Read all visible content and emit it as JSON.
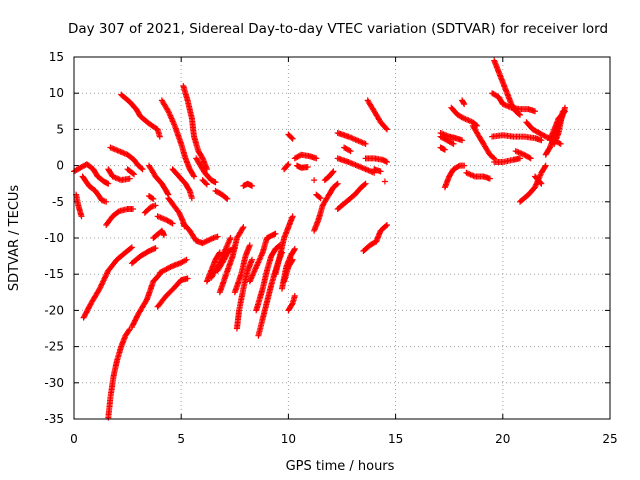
{
  "chart_data": {
    "type": "scatter",
    "title": "Day 307 of 2021, Sidereal Day-to-day VTEC variation (SDTVAR) for receiver lord",
    "xlabel": "GPS time / hours",
    "ylabel": "SDTVAR / TECUs",
    "xlim": [
      0,
      25
    ],
    "ylim": [
      -35,
      15
    ],
    "xticks": [
      "0",
      "5",
      "10",
      "15",
      "20",
      "25"
    ],
    "yticks": [
      "15",
      "10",
      "5",
      "0",
      "-5",
      "-10",
      "-15",
      "-20",
      "-25",
      "-30",
      "-35"
    ],
    "grid": true,
    "marker": "+",
    "color": "#ff0000",
    "arcs": [
      [
        [
          0.0,
          -0.8
        ],
        [
          0.3,
          -0.3
        ],
        [
          0.6,
          0.2
        ],
        [
          0.9,
          -0.5
        ],
        [
          1.1,
          -1.5
        ],
        [
          1.4,
          -2.2
        ],
        [
          1.6,
          -2.5
        ]
      ],
      [
        [
          0.1,
          -4.0
        ],
        [
          0.2,
          -5.5
        ],
        [
          0.35,
          -7.0
        ]
      ],
      [
        [
          0.4,
          -1.5
        ],
        [
          0.7,
          -2.8
        ],
        [
          1.0,
          -3.5
        ],
        [
          1.3,
          -4.8
        ],
        [
          1.5,
          -5.0
        ]
      ],
      [
        [
          0.45,
          -21.0
        ],
        [
          0.8,
          -19.0
        ],
        [
          1.2,
          -17.0
        ],
        [
          1.6,
          -14.5
        ],
        [
          2.0,
          -13.0
        ],
        [
          2.4,
          -12.0
        ],
        [
          2.7,
          -11.3
        ]
      ],
      [
        [
          1.6,
          -34.8
        ],
        [
          1.7,
          -32.0
        ],
        [
          1.85,
          -29.0
        ],
        [
          2.0,
          -27.0
        ],
        [
          2.2,
          -25.0
        ],
        [
          2.4,
          -23.5
        ],
        [
          2.6,
          -22.6
        ]
      ],
      [
        [
          1.5,
          -8.2
        ],
        [
          1.8,
          -7.0
        ],
        [
          2.1,
          -6.3
        ],
        [
          2.5,
          -6.0
        ],
        [
          2.75,
          -6.0
        ]
      ],
      [
        [
          1.6,
          -0.5
        ],
        [
          1.8,
          -1.5
        ],
        [
          2.2,
          -2.0
        ],
        [
          2.6,
          -1.8
        ]
      ],
      [
        [
          1.7,
          2.5
        ],
        [
          2.1,
          2.0
        ],
        [
          2.5,
          1.5
        ],
        [
          2.8,
          0.8
        ],
        [
          3.0,
          0.0
        ],
        [
          3.2,
          -0.5
        ]
      ],
      [
        [
          2.2,
          9.8
        ],
        [
          2.6,
          8.8
        ],
        [
          2.9,
          7.8
        ],
        [
          3.1,
          6.8
        ],
        [
          3.5,
          5.8
        ],
        [
          3.9,
          5.0
        ],
        [
          4.0,
          4.0
        ]
      ],
      [
        [
          2.5,
          -0.5
        ],
        [
          2.8,
          -1.2
        ]
      ],
      [
        [
          2.7,
          -13.5
        ],
        [
          3.1,
          -12.5
        ],
        [
          3.5,
          -11.8
        ],
        [
          3.8,
          -11.4
        ]
      ],
      [
        [
          2.7,
          -22.3
        ],
        [
          3.0,
          -20.5
        ],
        [
          3.4,
          -18.5
        ],
        [
          3.7,
          -16.0
        ],
        [
          4.0,
          -15.0
        ]
      ],
      [
        [
          3.3,
          -6.5
        ],
        [
          3.6,
          -5.7
        ],
        [
          3.8,
          -5.5
        ]
      ],
      [
        [
          3.5,
          0.0
        ],
        [
          3.8,
          -1.5
        ],
        [
          4.1,
          -2.5
        ],
        [
          4.3,
          -3.5
        ],
        [
          4.4,
          -4.0
        ]
      ],
      [
        [
          3.5,
          -4.2
        ],
        [
          3.7,
          -4.6
        ]
      ],
      [
        [
          3.7,
          -10.0
        ],
        [
          3.9,
          -9.5
        ],
        [
          4.1,
          -9.0
        ],
        [
          4.2,
          -9.6
        ]
      ],
      [
        [
          3.9,
          -7.0
        ],
        [
          4.3,
          -7.5
        ],
        [
          4.6,
          -8.0
        ]
      ],
      [
        [
          3.9,
          -19.5
        ],
        [
          4.3,
          -18.0
        ],
        [
          4.7,
          -16.8
        ],
        [
          5.0,
          -15.8
        ],
        [
          5.3,
          -15.6
        ]
      ],
      [
        [
          4.0,
          -14.8
        ],
        [
          4.5,
          -14.0
        ],
        [
          5.0,
          -13.4
        ],
        [
          5.25,
          -13.0
        ]
      ],
      [
        [
          4.1,
          9.0
        ],
        [
          4.4,
          7.5
        ],
        [
          4.7,
          5.5
        ],
        [
          5.0,
          3.0
        ],
        [
          5.2,
          1.0
        ],
        [
          5.4,
          -0.5
        ],
        [
          5.6,
          -1.5
        ]
      ],
      [
        [
          4.6,
          -0.5
        ],
        [
          4.9,
          -1.5
        ],
        [
          5.2,
          -2.5
        ],
        [
          5.4,
          -3.5
        ],
        [
          5.5,
          -4.5
        ]
      ],
      [
        [
          4.4,
          -4.5
        ],
        [
          4.6,
          -5.3
        ],
        [
          4.9,
          -6.5
        ],
        [
          5.1,
          -7.8
        ],
        [
          5.15,
          -8.4
        ]
      ],
      [
        [
          5.1,
          -8.0
        ],
        [
          5.4,
          -9.0
        ],
        [
          5.7,
          -10.4
        ],
        [
          6.0,
          -10.7
        ],
        [
          6.5,
          -10.0
        ],
        [
          6.7,
          -9.8
        ]
      ],
      [
        [
          5.1,
          11.0
        ],
        [
          5.3,
          9.0
        ],
        [
          5.5,
          6.5
        ],
        [
          5.6,
          4.0
        ],
        [
          5.8,
          2.0
        ],
        [
          6.0,
          1.0
        ],
        [
          6.2,
          -0.5
        ]
      ],
      [
        [
          5.7,
          1.0
        ],
        [
          6.1,
          -1.0
        ],
        [
          6.4,
          -2.0
        ],
        [
          6.6,
          -2.3
        ]
      ],
      [
        [
          6.0,
          -2.0
        ],
        [
          6.2,
          -2.6
        ]
      ],
      [
        [
          6.6,
          -3.5
        ],
        [
          6.9,
          -4.0
        ],
        [
          7.15,
          -4.6
        ]
      ],
      [
        [
          6.7,
          -14.5
        ],
        [
          7.0,
          -13.0
        ],
        [
          7.2,
          -11.8
        ],
        [
          7.5,
          -11.4
        ]
      ],
      [
        [
          6.2,
          -16.0
        ],
        [
          6.4,
          -14.5
        ],
        [
          6.6,
          -13.0
        ],
        [
          6.8,
          -12.0
        ]
      ],
      [
        [
          6.4,
          -15.5
        ],
        [
          6.7,
          -14.0
        ],
        [
          7.0,
          -12.0
        ],
        [
          7.3,
          -10.0
        ]
      ],
      [
        [
          6.8,
          -17.5
        ],
        [
          7.1,
          -15.0
        ],
        [
          7.4,
          -12.5
        ],
        [
          7.6,
          -10.0
        ],
        [
          7.9,
          -8.5
        ]
      ],
      [
        [
          7.9,
          -2.8
        ],
        [
          8.1,
          -2.5
        ],
        [
          8.3,
          -2.8
        ]
      ],
      [
        [
          7.6,
          -22.5
        ],
        [
          7.7,
          -20.0
        ],
        [
          7.9,
          -17.0
        ],
        [
          8.1,
          -14.5
        ],
        [
          8.3,
          -13.0
        ]
      ],
      [
        [
          7.5,
          -17.5
        ],
        [
          7.8,
          -15.0
        ],
        [
          8.0,
          -12.5
        ],
        [
          8.2,
          -11.0
        ]
      ],
      [
        [
          8.2,
          -16.0
        ],
        [
          8.5,
          -14.0
        ],
        [
          8.8,
          -12.0
        ],
        [
          9.0,
          -10.0
        ],
        [
          9.4,
          -9.4
        ]
      ],
      [
        [
          8.5,
          -20.0
        ],
        [
          8.8,
          -17.0
        ],
        [
          9.0,
          -14.5
        ],
        [
          9.2,
          -12.5
        ],
        [
          9.4,
          -11.5
        ],
        [
          9.6,
          -11.0
        ]
      ],
      [
        [
          8.6,
          -23.5
        ],
        [
          8.9,
          -20.0
        ],
        [
          9.2,
          -16.5
        ],
        [
          9.5,
          -13.5
        ],
        [
          9.7,
          -12.0
        ]
      ],
      [
        [
          9.4,
          -15.0
        ],
        [
          9.6,
          -12.5
        ],
        [
          9.8,
          -10.0
        ],
        [
          10.0,
          -8.5
        ],
        [
          10.2,
          -7.0
        ]
      ],
      [
        [
          9.7,
          -17.0
        ],
        [
          9.9,
          -14.0
        ],
        [
          10.1,
          -12.5
        ],
        [
          10.3,
          -11.5
        ]
      ],
      [
        [
          9.8,
          -16.0
        ],
        [
          10.0,
          -14.0
        ],
        [
          10.2,
          -13.0
        ]
      ],
      [
        [
          10.0,
          -20.0
        ],
        [
          10.2,
          -19.0
        ],
        [
          10.3,
          -18.0
        ]
      ],
      [
        [
          10.0,
          4.3
        ],
        [
          10.2,
          3.7
        ]
      ],
      [
        [
          9.8,
          -0.5
        ],
        [
          10.0,
          0.2
        ]
      ],
      [
        [
          10.3,
          1.0
        ],
        [
          10.6,
          1.5
        ],
        [
          11.0,
          1.3
        ],
        [
          11.3,
          1.0
        ]
      ],
      [
        [
          10.4,
          0.0
        ],
        [
          10.6,
          -0.3
        ],
        [
          10.9,
          -0.2
        ]
      ],
      [
        [
          11.2,
          -2.0
        ]
      ],
      [
        [
          11.2,
          -9.0
        ],
        [
          11.4,
          -7.5
        ],
        [
          11.6,
          -5.5
        ],
        [
          11.9,
          -4.0
        ],
        [
          12.1,
          -3.0
        ],
        [
          12.3,
          -2.5
        ]
      ],
      [
        [
          11.7,
          -2.0
        ],
        [
          11.9,
          -1.5
        ],
        [
          12.1,
          -0.8
        ]
      ],
      [
        [
          11.3,
          -4.0
        ],
        [
          11.5,
          -4.5
        ]
      ],
      [
        [
          12.3,
          -6.0
        ],
        [
          12.7,
          -5.0
        ],
        [
          13.1,
          -4.0
        ],
        [
          13.4,
          -3.0
        ],
        [
          13.6,
          -2.5
        ]
      ],
      [
        [
          12.3,
          4.5
        ],
        [
          12.8,
          4.0
        ],
        [
          13.2,
          3.5
        ],
        [
          13.6,
          3.0
        ]
      ],
      [
        [
          12.3,
          1.0
        ],
        [
          12.8,
          0.5
        ],
        [
          13.2,
          0.0
        ],
        [
          13.6,
          -0.5
        ],
        [
          14.0,
          -1.0
        ]
      ],
      [
        [
          12.6,
          2.5
        ],
        [
          12.9,
          2.0
        ]
      ],
      [
        [
          13.7,
          9.0
        ],
        [
          14.0,
          7.5
        ],
        [
          14.3,
          6.0
        ],
        [
          14.6,
          5.0
        ]
      ],
      [
        [
          13.5,
          -11.8
        ],
        [
          13.8,
          -11.0
        ],
        [
          14.1,
          -10.5
        ],
        [
          14.3,
          -9.0
        ],
        [
          14.6,
          -8.2
        ]
      ],
      [
        [
          13.6,
          1.0
        ],
        [
          14.0,
          1.0
        ],
        [
          14.4,
          0.8
        ],
        [
          14.6,
          0.5
        ]
      ],
      [
        [
          14.0,
          -0.5
        ],
        [
          14.3,
          -0.8
        ]
      ],
      [
        [
          14.5,
          -2.2
        ]
      ],
      [
        [
          17.1,
          4.5
        ],
        [
          17.5,
          4.0
        ],
        [
          17.8,
          3.8
        ],
        [
          18.1,
          3.5
        ]
      ],
      [
        [
          17.1,
          2.5
        ],
        [
          17.3,
          2.2
        ]
      ],
      [
        [
          17.1,
          4.0
        ],
        [
          17.4,
          3.5
        ],
        [
          17.7,
          3.0
        ]
      ],
      [
        [
          17.3,
          -3.0
        ],
        [
          17.5,
          -1.5
        ],
        [
          17.7,
          -0.5
        ],
        [
          18.0,
          0.0
        ],
        [
          18.2,
          0.0
        ]
      ],
      [
        [
          17.6,
          8.0
        ],
        [
          17.9,
          7.0
        ],
        [
          18.2,
          6.5
        ],
        [
          18.6,
          6.0
        ],
        [
          18.8,
          5.5
        ]
      ],
      [
        [
          18.1,
          9.0
        ],
        [
          18.2,
          8.5
        ]
      ],
      [
        [
          18.3,
          -1.0
        ],
        [
          18.7,
          -1.5
        ],
        [
          19.1,
          -1.5
        ],
        [
          19.4,
          -1.8
        ]
      ],
      [
        [
          18.6,
          5.5
        ],
        [
          18.9,
          4.0
        ],
        [
          19.1,
          3.0
        ],
        [
          19.4,
          1.5
        ],
        [
          19.6,
          1.0
        ]
      ],
      [
        [
          19.6,
          14.5
        ],
        [
          19.8,
          13.0
        ],
        [
          20.0,
          11.5
        ],
        [
          20.2,
          10.0
        ],
        [
          20.4,
          8.5
        ],
        [
          20.6,
          7.5
        ],
        [
          20.8,
          7.0
        ]
      ],
      [
        [
          19.5,
          10.0
        ],
        [
          19.8,
          9.5
        ],
        [
          20.0,
          8.5
        ],
        [
          20.4,
          8.0
        ],
        [
          20.8,
          7.8
        ],
        [
          21.2,
          7.8
        ],
        [
          21.5,
          7.5
        ]
      ],
      [
        [
          19.5,
          4.0
        ],
        [
          20.0,
          4.2
        ],
        [
          20.5,
          4.0
        ],
        [
          21.0,
          4.0
        ],
        [
          21.5,
          3.8
        ],
        [
          21.8,
          3.5
        ]
      ],
      [
        [
          19.6,
          0.5
        ],
        [
          20.0,
          0.5
        ],
        [
          20.5,
          0.8
        ],
        [
          20.8,
          1.0
        ]
      ],
      [
        [
          20.8,
          -5.0
        ],
        [
          21.2,
          -4.0
        ],
        [
          21.5,
          -3.0
        ],
        [
          21.8,
          -1.0
        ],
        [
          22.0,
          0.0
        ]
      ],
      [
        [
          21.5,
          -1.5
        ],
        [
          21.8,
          -2.5
        ]
      ],
      [
        [
          21.1,
          6.0
        ],
        [
          21.4,
          5.0
        ],
        [
          21.7,
          4.5
        ],
        [
          22.0,
          4.0
        ],
        [
          22.4,
          3.5
        ],
        [
          22.7,
          3.0
        ]
      ],
      [
        [
          20.6,
          2.0
        ],
        [
          21.0,
          1.5
        ],
        [
          21.3,
          1.0
        ]
      ],
      [
        [
          22.0,
          1.5
        ],
        [
          22.2,
          2.5
        ],
        [
          22.4,
          4.0
        ],
        [
          22.6,
          5.5
        ],
        [
          22.8,
          7.0
        ],
        [
          22.9,
          8.0
        ]
      ],
      [
        [
          22.4,
          3.0
        ],
        [
          22.6,
          4.5
        ],
        [
          22.7,
          6.0
        ],
        [
          22.8,
          7.5
        ]
      ],
      [
        [
          22.2,
          3.5
        ],
        [
          22.4,
          5.0
        ],
        [
          22.6,
          6.5
        ],
        [
          22.9,
          7.5
        ]
      ]
    ]
  }
}
